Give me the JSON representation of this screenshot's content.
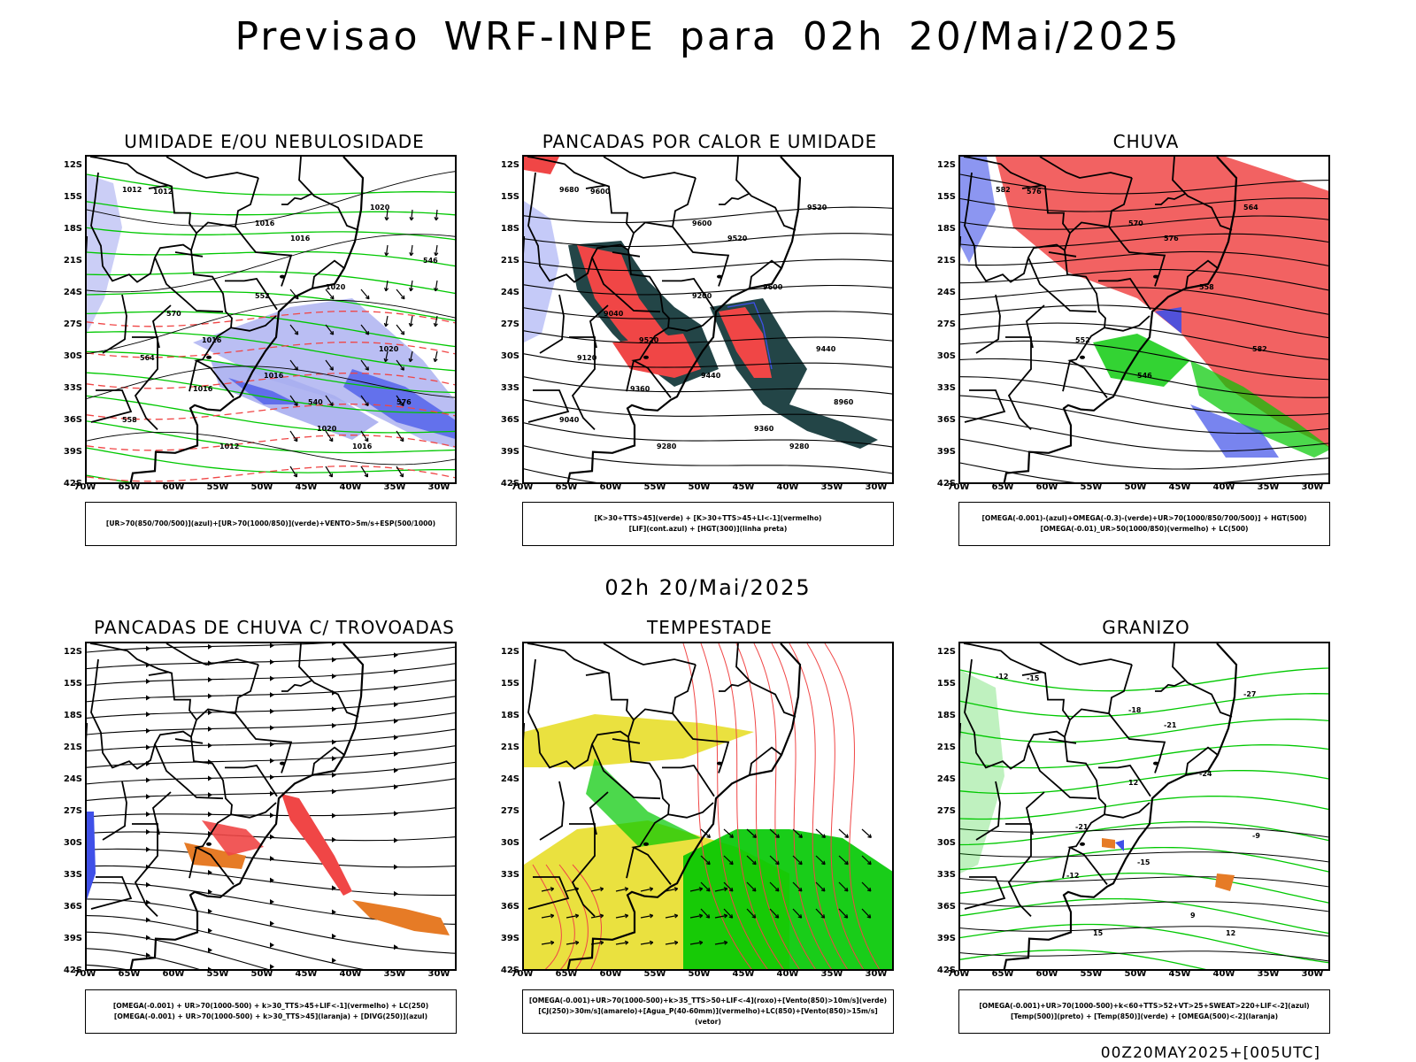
{
  "title": "Previsao WRF-INPE  para 02h 20/Mai/2025",
  "mid_date": "02h 20/Mai/2025",
  "footer": "00Z20MAY2025+[005UTC]",
  "latitude_ticks": [
    "12S",
    "15S",
    "18S",
    "21S",
    "24S",
    "27S",
    "30S",
    "33S",
    "36S",
    "39S",
    "42S"
  ],
  "longitude_ticks": [
    "70W",
    "65W",
    "60W",
    "55W",
    "50W",
    "45W",
    "40W",
    "35W",
    "30W"
  ],
  "colors": {
    "blue": "#3f50e8",
    "lightblue": "#a9aef0",
    "green": "#00c800",
    "red": "#f04646",
    "darkteal": "#234547",
    "orange": "#e67b26",
    "yellow": "#e8de2a",
    "black": "#000000"
  },
  "panels": [
    {
      "id": "umidade",
      "title": "UMIDADE E/OU NEBULOSIDADE",
      "legend": [
        "[UR>70(850/700/500)](azul)+[UR>70(1000/850)](verde)+VENTO>5m/s+ESP(500/1000)"
      ],
      "contour_labels": [
        "1012",
        "1012",
        "1016",
        "1016",
        "1020",
        "1020",
        "1016",
        "1016",
        "1020",
        "1016",
        "1020",
        "1016",
        "1012",
        "552",
        "564",
        "570",
        "576",
        "558",
        "546",
        "540"
      ]
    },
    {
      "id": "pancadas_calor",
      "title": "PANCADAS POR CALOR E UMIDADE",
      "legend": [
        "[K>30+TTS>45](verde) + [K>30+TTS>45+LI<-1](vermelho)",
        "[LIF](cont.azul) + [HGT(300)](linha preta)"
      ],
      "contour_labels": [
        "9680",
        "9600",
        "9600",
        "9520",
        "9520",
        "9600",
        "9520",
        "9440",
        "9440",
        "9360",
        "9360",
        "9280",
        "9280",
        "9200",
        "9120",
        "9040",
        "8960",
        "9040"
      ]
    },
    {
      "id": "chuva",
      "title": "CHUVA",
      "legend": [
        "[OMEGA(-0.001)-(azul)+OMEGA(-0.3)-(verde)+UR>70(1000/850/700/500)] + HGT(500)",
        "[OMEGA(-0.01)_UR>50(1000/850)(vermelho) + LC(500)"
      ],
      "contour_labels": [
        "582",
        "576",
        "570",
        "576",
        "564",
        "558",
        "552",
        "546",
        "582"
      ]
    },
    {
      "id": "pancadas_trovoadas",
      "title": "PANCADAS DE CHUVA C/ TROVOADAS",
      "legend": [
        "[OMEGA(-0.001) + UR>70(1000-500) + k>30_TTS>45+LIF<-1](vermelho) + LC(250)",
        "[OMEGA(-0.001) + UR>70(1000-500) + k>30_TTS>45](laranja) + [DIVG(250)](azul)"
      ],
      "contour_labels": []
    },
    {
      "id": "tempestade",
      "title": "TEMPESTADE",
      "legend": [
        "[OMEGA(-0.001)+UR>70(1000-500)+k>35_TTS>50+LIF<-4](roxo)+[Vento(850)>10m/s](verde)",
        "[CJ(250)>30m/s](amarelo)+[Agua_P(40-60mm)](vermelho)+LC(850)+[Vento(850)>15m/s](vetor)"
      ],
      "contour_labels": []
    },
    {
      "id": "granizo",
      "title": "GRANIZO",
      "legend": [
        "[OMEGA(-0.001)+UR>70(1000-500)+k<60+TTS>52+VT>25+SWEAT>220+LIF<-2](azul)",
        "[Temp(500)](preto) + [Temp(850)](verde) + [OMEGA(500)<-2](laranja)"
      ],
      "contour_labels": [
        "-12",
        "-15",
        "-18",
        "-21",
        "-27",
        "-24",
        "-21",
        "-15",
        "-9",
        "-12",
        "9",
        "12",
        "15",
        "12"
      ]
    }
  ]
}
